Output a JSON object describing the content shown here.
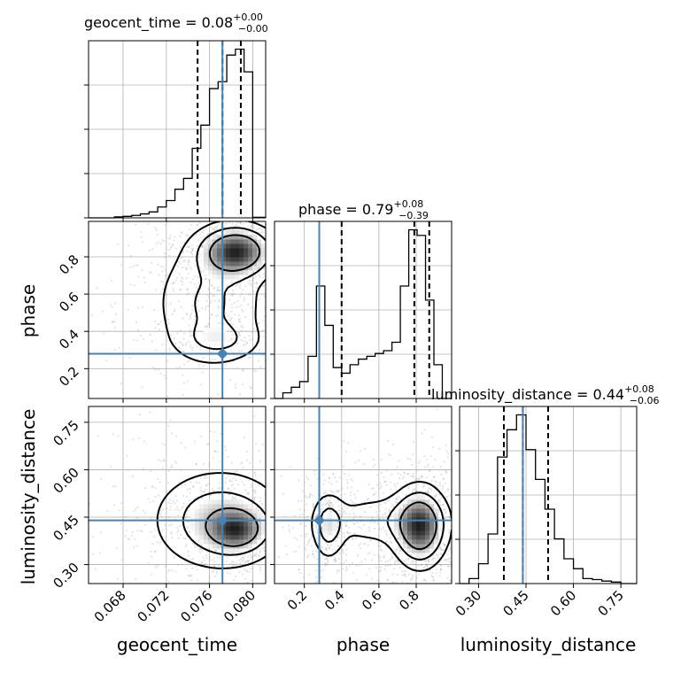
{
  "chart_data": {
    "type": "corner",
    "parameters": [
      "geocent_time",
      "phase",
      "luminosity_distance"
    ],
    "axis_labels": [
      "geocent_time",
      "phase",
      "luminosity_distance"
    ],
    "y_axis_labels": [
      "phase",
      "luminosity_distance"
    ],
    "truths": {
      "geocent_time": 0.0772,
      "phase": 0.28,
      "luminosity_distance": 0.44
    },
    "titles": [
      {
        "param": "geocent_time",
        "prefix": "geocent_time = 0.08",
        "upper": "+0.00",
        "lower": "−0.00"
      },
      {
        "param": "phase",
        "prefix": "phase = 0.79",
        "upper": "+0.08",
        "lower": "−0.39"
      },
      {
        "param": "luminosity_distance",
        "prefix": "luminosity_distance = 0.44",
        "upper": "+0.08",
        "lower": "−0.06"
      }
    ],
    "ranges": {
      "geocent_time": [
        0.0648,
        0.0812
      ],
      "phase": [
        0.04,
        0.99
      ],
      "luminosity_distance": [
        0.24,
        0.8
      ]
    },
    "ticks": {
      "geocent_time": {
        "values": [
          0.068,
          0.072,
          0.076,
          0.08
        ],
        "labels": [
          "0.068",
          "0.072",
          "0.076",
          "0.080"
        ]
      },
      "phase": {
        "values": [
          0.2,
          0.4,
          0.6,
          0.8
        ],
        "labels": [
          "0.2",
          "0.4",
          "0.6",
          "0.8"
        ]
      },
      "luminosity_distance": {
        "values": [
          0.3,
          0.45,
          0.6,
          0.75
        ],
        "labels": [
          "0.30",
          "0.45",
          "0.60",
          "0.75"
        ]
      }
    },
    "quantiles": {
      "geocent_time": [
        0.0749,
        0.0772,
        0.0789
      ],
      "phase": [
        0.4,
        0.79,
        0.87
      ],
      "luminosity_distance": [
        0.38,
        0.44,
        0.52
      ]
    },
    "histograms": {
      "geocent_time": {
        "edges": [
          0.0648,
          0.0656,
          0.0664,
          0.0672,
          0.068,
          0.0688,
          0.0696,
          0.0704,
          0.0712,
          0.072,
          0.0728,
          0.0736,
          0.0744,
          0.0752,
          0.076,
          0.0768,
          0.0776,
          0.0784,
          0.0792,
          0.08,
          0.0808,
          0.0812
        ],
        "counts": [
          0,
          0,
          0,
          2,
          3,
          5,
          8,
          12,
          22,
          35,
          58,
          80,
          141,
          188,
          262,
          276,
          330,
          342,
          296,
          1,
          1
        ]
      },
      "phase": {
        "edges": [
          0.04,
          0.085,
          0.13,
          0.175,
          0.22,
          0.265,
          0.31,
          0.355,
          0.4,
          0.445,
          0.49,
          0.535,
          0.58,
          0.625,
          0.67,
          0.715,
          0.76,
          0.805,
          0.85,
          0.895,
          0.94,
          0.99
        ],
        "counts": [
          0,
          10,
          20,
          30,
          75,
          200,
          130,
          55,
          45,
          60,
          70,
          75,
          80,
          85,
          100,
          200,
          300,
          290,
          175,
          60,
          0
        ]
      },
      "luminosity_distance": {
        "edges": [
          0.24,
          0.27,
          0.3,
          0.33,
          0.36,
          0.39,
          0.42,
          0.45,
          0.48,
          0.51,
          0.54,
          0.57,
          0.6,
          0.63,
          0.66,
          0.69,
          0.72,
          0.75,
          0.8
        ],
        "counts": [
          0,
          10,
          40,
          100,
          255,
          310,
          340,
          270,
          210,
          150,
          90,
          50,
          30,
          10,
          8,
          5,
          3,
          0
        ]
      }
    },
    "density_peaks": [
      {
        "x": "geocent_time",
        "y": "phase",
        "centers": [
          [
            0.0785,
            0.83,
            0.002,
            0.08,
            0.55
          ],
          [
            0.077,
            0.35,
            0.0022,
            0.06,
            0.12
          ],
          [
            0.076,
            0.55,
            0.003,
            0.2,
            0.2
          ]
        ]
      },
      {
        "x": "geocent_time",
        "y": "luminosity_distance",
        "centers": [
          [
            0.0785,
            0.41,
            0.0016,
            0.04,
            0.55
          ],
          [
            0.077,
            0.44,
            0.0035,
            0.09,
            0.45
          ]
        ]
      },
      {
        "x": "phase",
        "y": "luminosity_distance",
        "centers": [
          [
            0.82,
            0.42,
            0.08,
            0.07,
            0.6
          ],
          [
            0.33,
            0.42,
            0.05,
            0.06,
            0.25
          ],
          [
            0.6,
            0.44,
            0.2,
            0.05,
            0.15
          ]
        ]
      }
    ],
    "grid": true
  }
}
